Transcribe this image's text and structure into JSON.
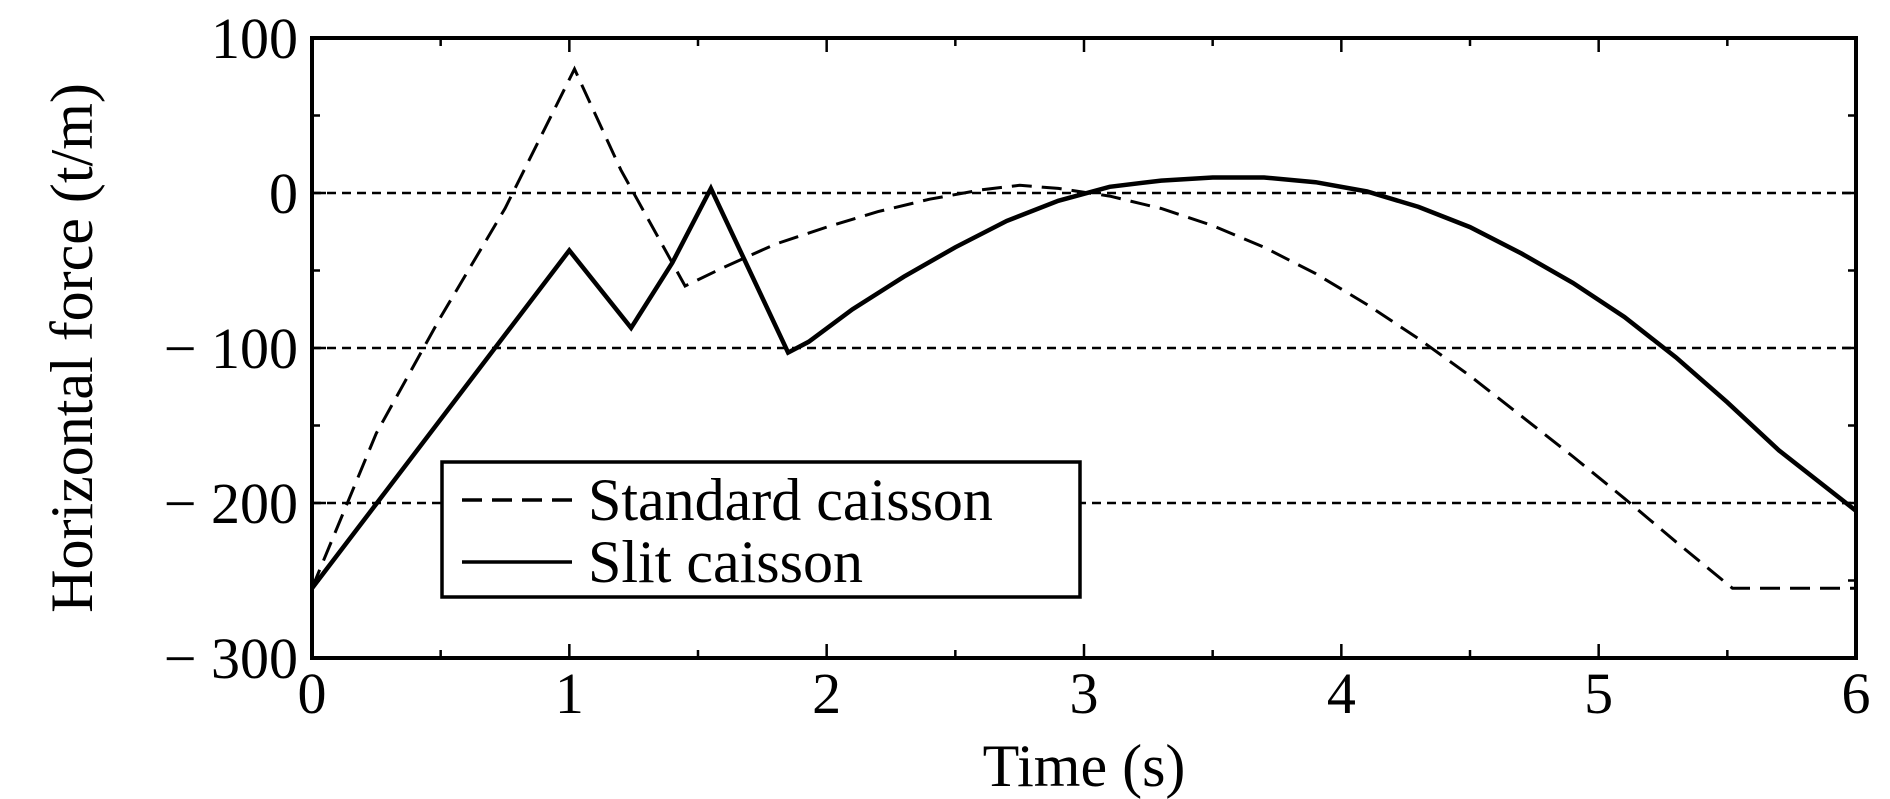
{
  "chart_data": {
    "type": "line",
    "xlabel": "Time (s)",
    "ylabel": "Horizontal force (t/m)",
    "xlim": [
      0,
      6
    ],
    "ylim": [
      -300,
      100
    ],
    "x_ticks": [
      {
        "value": 0,
        "label": "0"
      },
      {
        "value": 1,
        "label": "1"
      },
      {
        "value": 2,
        "label": "2"
      },
      {
        "value": 3,
        "label": "3"
      },
      {
        "value": 4,
        "label": "4"
      },
      {
        "value": 5,
        "label": "5"
      },
      {
        "value": 6,
        "label": "6"
      }
    ],
    "y_ticks": [
      {
        "value": 100,
        "label": "100"
      },
      {
        "value": 0,
        "label": "0"
      },
      {
        "value": -100,
        "label": "− 100"
      },
      {
        "value": -200,
        "label": "− 200"
      },
      {
        "value": -300,
        "label": "− 300"
      }
    ],
    "gridlines_y": [
      100,
      0,
      -100,
      -200
    ],
    "grid_style": "dashed horizontal",
    "legend_position": "lower-left",
    "series": [
      {
        "name": "Standard caisson",
        "style": "dashed",
        "color": "#000000",
        "x": [
          0,
          0.25,
          0.5,
          0.75,
          1.02,
          1.2,
          1.35,
          1.45,
          1.6,
          1.8,
          2.0,
          2.2,
          2.4,
          2.6,
          2.75,
          2.9,
          3.1,
          3.3,
          3.5,
          3.7,
          3.9,
          4.1,
          4.3,
          4.5,
          4.7,
          4.9,
          5.1,
          5.3,
          5.52,
          5.7,
          6.0
        ],
        "y": [
          -255,
          -155,
          -80,
          -10,
          80,
          15,
          -30,
          -60,
          -48,
          -33,
          -22,
          -12,
          -4,
          2,
          5,
          3,
          -2,
          -10,
          -21,
          -35,
          -52,
          -72,
          -94,
          -118,
          -144,
          -170,
          -197,
          -225,
          -255,
          -255,
          -255
        ]
      },
      {
        "name": "Slit caisson",
        "style": "solid",
        "color": "#000000",
        "x": [
          0,
          1.0,
          1.24,
          1.4,
          1.55,
          1.85,
          1.93,
          2.1,
          2.3,
          2.5,
          2.7,
          2.9,
          3.1,
          3.3,
          3.5,
          3.7,
          3.9,
          4.1,
          4.3,
          4.5,
          4.7,
          4.9,
          5.1,
          5.3,
          5.5,
          5.7,
          6.0
        ],
        "y": [
          -255,
          -37,
          -87,
          -45,
          3,
          -103,
          -96,
          -75,
          -54,
          -35,
          -18,
          -5,
          4,
          8,
          10,
          10,
          7,
          1,
          -9,
          -22,
          -39,
          -58,
          -80,
          -106,
          -135,
          -166,
          -205
        ]
      }
    ]
  }
}
